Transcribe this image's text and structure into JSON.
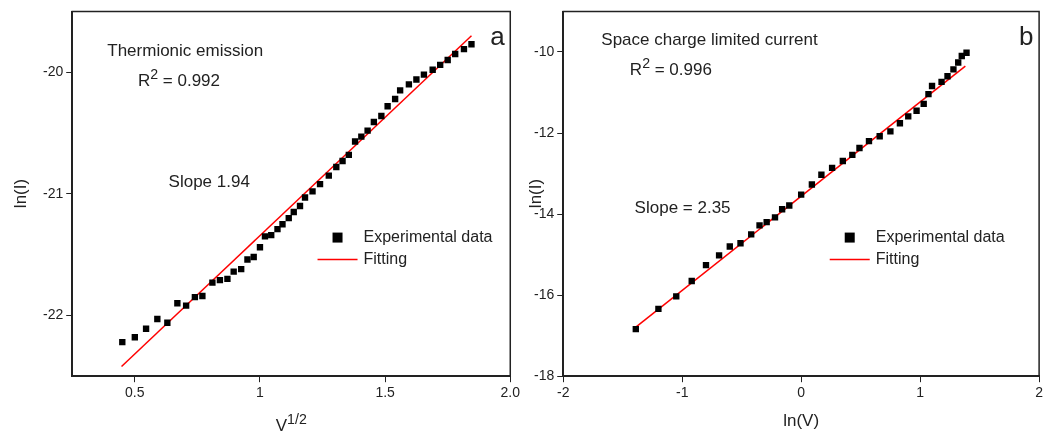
{
  "chart_data": [
    {
      "type": "scatter",
      "xlabel": "V$^{1/2}$",
      "ylabel": "ln(I)",
      "annotations": [
        "Thermionic emission",
        "R$^{2}$ = 0.992",
        "Slope 1.94",
        "a"
      ],
      "xlim": [
        0.25,
        2.0
      ],
      "xticks": [
        0.5,
        1.0,
        1.5,
        {
          "value": 2.0,
          "label": "2.0"
        }
      ],
      "ylim": [
        -22.5,
        -19.5
      ],
      "yticks": [
        -22,
        -21,
        -20
      ],
      "grid": false,
      "legend": "right",
      "series": [
        {
          "name": "Experimental data",
          "type": "scatter",
          "color": "#000000",
          "marker": "square",
          "x": [
            0.45,
            0.5,
            0.545,
            0.59,
            0.63,
            0.67,
            0.705,
            0.74,
            0.77,
            0.81,
            0.84,
            0.87,
            0.895,
            0.925,
            0.95,
            0.975,
            1.0,
            1.02,
            1.045,
            1.07,
            1.09,
            1.115,
            1.135,
            1.16,
            1.18,
            1.21,
            1.24,
            1.275,
            1.305,
            1.33,
            1.355,
            1.38,
            1.405,
            1.43,
            1.455,
            1.485,
            1.51,
            1.54,
            1.56,
            1.595,
            1.625,
            1.655,
            1.69,
            1.72,
            1.75,
            1.78,
            1.815,
            1.845
          ],
          "values": [
            -22.22,
            -22.18,
            -22.11,
            -22.03,
            -22.06,
            -21.9,
            -21.92,
            -21.85,
            -21.84,
            -21.73,
            -21.71,
            -21.7,
            -21.64,
            -21.62,
            -21.54,
            -21.52,
            -21.44,
            -21.35,
            -21.34,
            -21.29,
            -21.25,
            -21.2,
            -21.15,
            -21.1,
            -21.03,
            -20.98,
            -20.92,
            -20.85,
            -20.78,
            -20.73,
            -20.68,
            -20.57,
            -20.53,
            -20.48,
            -20.41,
            -20.36,
            -20.28,
            -20.22,
            -20.15,
            -20.1,
            -20.06,
            -20.02,
            -19.98,
            -19.94,
            -19.9,
            -19.85,
            -19.81,
            -19.77
          ]
        },
        {
          "name": "Fitting",
          "type": "line",
          "color": "#ff0000",
          "marker": "none",
          "line_style": "solid",
          "x": [
            0.447,
            1.845
          ],
          "values": [
            -22.42,
            -19.7
          ]
        }
      ]
    },
    {
      "type": "scatter",
      "xlabel": "ln(V)",
      "ylabel": "ln(I)",
      "annotations": [
        "Space charge limited current",
        "R$^{2}$ = 0.996",
        "Slope = 2.35",
        "b"
      ],
      "xlim": [
        -2,
        2
      ],
      "xticks": [
        -2,
        -1,
        0,
        1,
        2
      ],
      "ylim": [
        -18,
        -9
      ],
      "yticks": [
        -18,
        -16,
        -14,
        -12,
        -10
      ],
      "grid": false,
      "legend": "right",
      "series": [
        {
          "name": "Experimental data",
          "type": "scatter",
          "color": "#000000",
          "marker": "square",
          "x": [
            -1.39,
            -1.2,
            -1.05,
            -0.92,
            -0.8,
            -0.69,
            -0.6,
            -0.51,
            -0.42,
            -0.35,
            -0.29,
            -0.22,
            -0.16,
            -0.1,
            0.0,
            0.09,
            0.17,
            0.26,
            0.35,
            0.43,
            0.49,
            0.57,
            0.66,
            0.75,
            0.83,
            0.9,
            0.97,
            1.03,
            1.07,
            1.1,
            1.18,
            1.23,
            1.28,
            1.32,
            1.35,
            1.39
          ],
          "values": [
            -16.84,
            -16.34,
            -16.03,
            -15.65,
            -15.26,
            -15.02,
            -14.8,
            -14.72,
            -14.5,
            -14.28,
            -14.2,
            -14.08,
            -13.88,
            -13.79,
            -13.52,
            -13.27,
            -13.03,
            -12.86,
            -12.69,
            -12.54,
            -12.37,
            -12.2,
            -12.08,
            -11.96,
            -11.76,
            -11.59,
            -11.45,
            -11.28,
            -11.04,
            -10.84,
            -10.74,
            -10.6,
            -10.43,
            -10.26,
            -10.1,
            -10.02
          ]
        },
        {
          "name": "Fitting",
          "type": "line",
          "color": "#ff0000",
          "marker": "none",
          "line_style": "solid",
          "x": [
            -1.39,
            1.38
          ],
          "values": [
            -16.79,
            -10.35
          ]
        }
      ]
    }
  ]
}
